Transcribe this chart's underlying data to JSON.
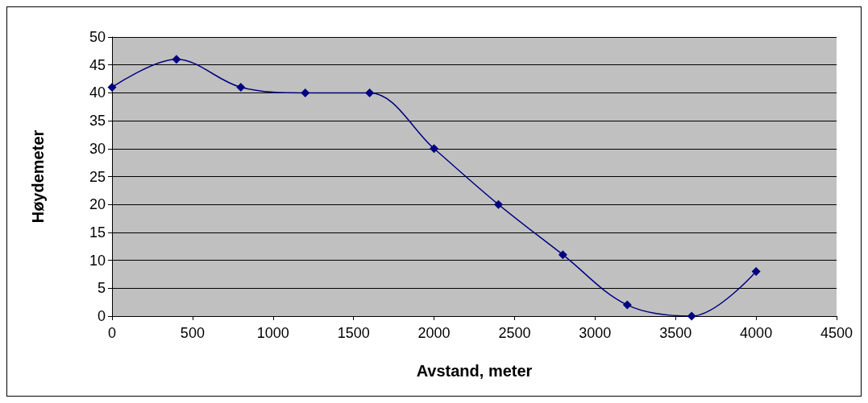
{
  "chart_data": {
    "type": "line",
    "xlabel": "Avstand, meter",
    "ylabel": "Høydemeter",
    "x": [
      0,
      400,
      800,
      1200,
      1600,
      2000,
      2400,
      2800,
      3200,
      3600,
      4000
    ],
    "series": [
      {
        "color": "#000080",
        "values": [
          41,
          46,
          41,
          40,
          40,
          30,
          20,
          11,
          2,
          0,
          8
        ]
      }
    ],
    "xlim": [
      0,
      4500
    ],
    "xticks": [
      0,
      500,
      1000,
      1500,
      2000,
      2500,
      3000,
      3500,
      4000,
      4500
    ],
    "ylim": [
      0,
      50
    ],
    "yticks": [
      0,
      5,
      10,
      15,
      20,
      25,
      30,
      35,
      40,
      45,
      50
    ],
    "grid": "y",
    "marker": "diamond",
    "line_style": "solid"
  }
}
